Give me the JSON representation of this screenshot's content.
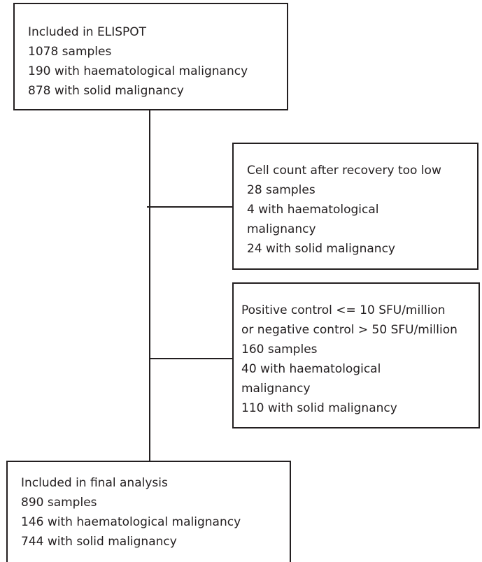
{
  "boxes": [
    {
      "lines": [
        "Included in ELISPOT",
        "1078 samples",
        "190 with haematological malignancy",
        "878 with solid malignancy"
      ]
    },
    {
      "lines": [
        "Cell count after recovery too low",
        "28 samples",
        "4 with haematological",
        "malignancy",
        "24 with solid malignancy"
      ]
    },
    {
      "lines": [
        "Positive control <= 10 SFU/million",
        "or negative control > 50 SFU/million",
        "160 samples",
        "40 with haematological",
        "malignancy",
        "110 with solid malignancy"
      ]
    },
    {
      "lines": [
        "Included in final analysis",
        "890 samples",
        "146 with haematological malignancy",
        "744 with solid malignancy"
      ]
    }
  ]
}
